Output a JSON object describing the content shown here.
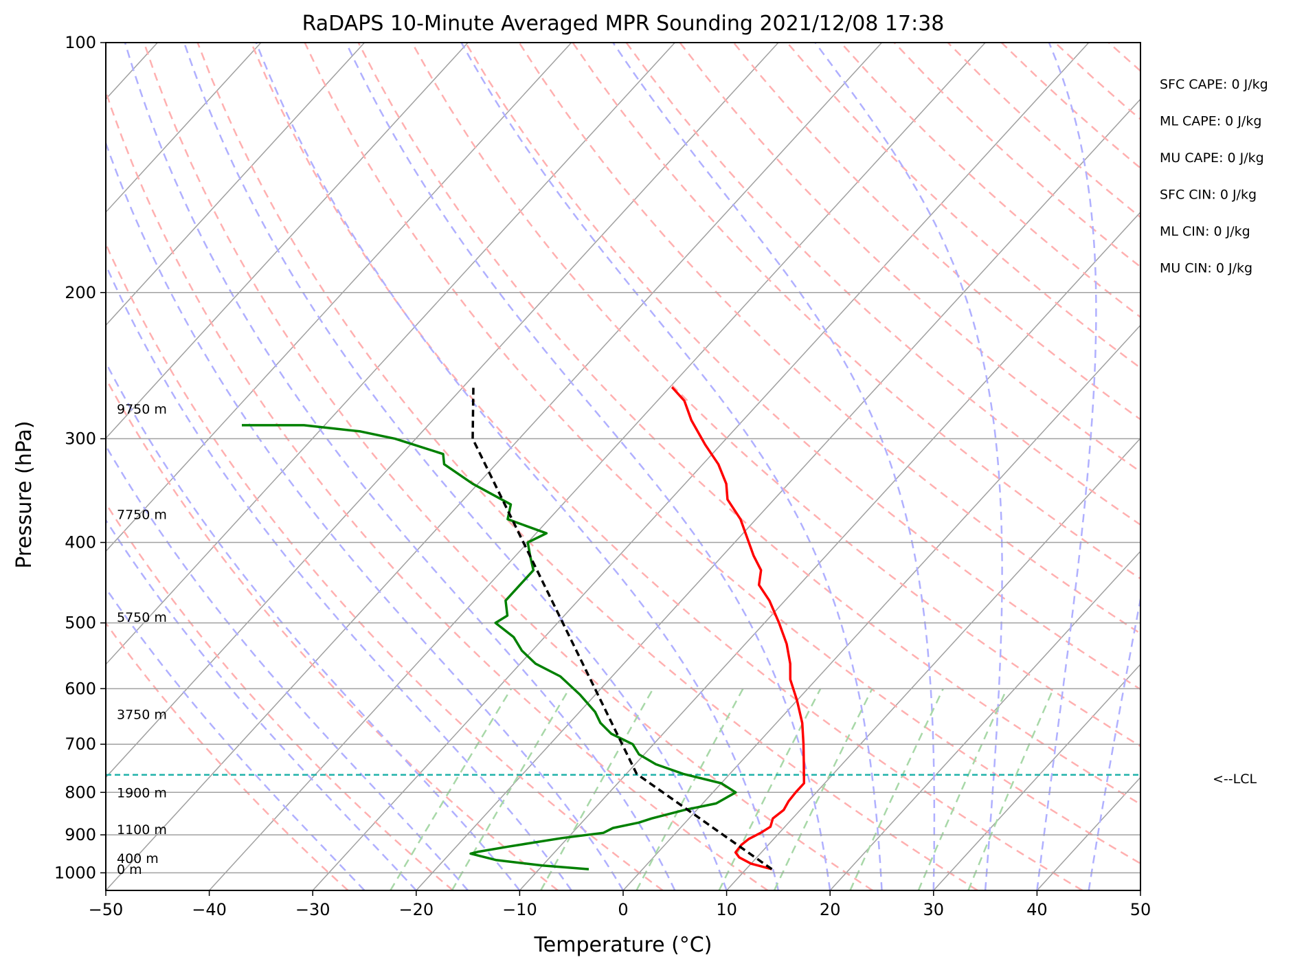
{
  "chart_data": {
    "type": "line",
    "title": "RaDAPS 10-Minute Averaged MPR Sounding 2021/12/08 17:38",
    "xlabel": "Temperature (°C)",
    "ylabel": "Pressure (hPa)",
    "xlim": [
      -50,
      50
    ],
    "ylim": [
      1050,
      100
    ],
    "y_scale": "log",
    "skew": "skew-T",
    "x_ticks": [
      "−50",
      "−40",
      "−30",
      "−20",
      "−10",
      "0",
      "10",
      "20",
      "30",
      "40",
      "50"
    ],
    "y_ticks": [
      "100",
      "200",
      "300",
      "400",
      "500",
      "600",
      "700",
      "800",
      "900",
      "1000"
    ],
    "grid": true,
    "series": [
      {
        "kind": "temperature",
        "color": "#ff0000",
        "points": [
          {
            "p": 990,
            "t": 12.5
          },
          {
            "p": 975,
            "t": 10.0
          },
          {
            "p": 958,
            "t": 8.3
          },
          {
            "p": 945,
            "t": 7.5
          },
          {
            "p": 925,
            "t": 7.4
          },
          {
            "p": 910,
            "t": 7.6
          },
          {
            "p": 895,
            "t": 8.2
          },
          {
            "p": 880,
            "t": 8.6
          },
          {
            "p": 860,
            "t": 8.1
          },
          {
            "p": 840,
            "t": 8.4
          },
          {
            "p": 820,
            "t": 8.1
          },
          {
            "p": 800,
            "t": 8.0
          },
          {
            "p": 780,
            "t": 8.0
          },
          {
            "p": 740,
            "t": 6.3
          },
          {
            "p": 700,
            "t": 4.5
          },
          {
            "p": 660,
            "t": 2.5
          },
          {
            "p": 620,
            "t": 0.0
          },
          {
            "p": 585,
            "t": -2.5
          },
          {
            "p": 560,
            "t": -3.9
          },
          {
            "p": 530,
            "t": -6.0
          },
          {
            "p": 500,
            "t": -8.6
          },
          {
            "p": 470,
            "t": -11.5
          },
          {
            "p": 450,
            "t": -13.9
          },
          {
            "p": 432,
            "t": -15.0
          },
          {
            "p": 415,
            "t": -17.0
          },
          {
            "p": 375,
            "t": -21.5
          },
          {
            "p": 355,
            "t": -24.5
          },
          {
            "p": 340,
            "t": -26.0
          },
          {
            "p": 322,
            "t": -28.5
          },
          {
            "p": 305,
            "t": -31.5
          },
          {
            "p": 285,
            "t": -35.0
          },
          {
            "p": 270,
            "t": -37.4
          },
          {
            "p": 260,
            "t": -39.8
          }
        ]
      },
      {
        "kind": "dewpoint",
        "color": "#008000",
        "points": [
          {
            "p": 990,
            "t": -5.2
          },
          {
            "p": 980,
            "t": -10.0
          },
          {
            "p": 965,
            "t": -15.0
          },
          {
            "p": 948,
            "t": -18.0
          },
          {
            "p": 943,
            "t": -17.4
          },
          {
            "p": 930,
            "t": -15.0
          },
          {
            "p": 908,
            "t": -10.5
          },
          {
            "p": 895,
            "t": -7.0
          },
          {
            "p": 883,
            "t": -6.5
          },
          {
            "p": 870,
            "t": -4.5
          },
          {
            "p": 860,
            "t": -3.6
          },
          {
            "p": 840,
            "t": -1.2
          },
          {
            "p": 825,
            "t": 1.3
          },
          {
            "p": 800,
            "t": 2.2
          },
          {
            "p": 780,
            "t": 0.0
          },
          {
            "p": 760,
            "t": -4.5
          },
          {
            "p": 740,
            "t": -8.0
          },
          {
            "p": 720,
            "t": -10.5
          },
          {
            "p": 700,
            "t": -12.0
          },
          {
            "p": 680,
            "t": -15.0
          },
          {
            "p": 660,
            "t": -17.0
          },
          {
            "p": 640,
            "t": -18.5
          },
          {
            "p": 610,
            "t": -21.5
          },
          {
            "p": 580,
            "t": -25.0
          },
          {
            "p": 560,
            "t": -28.5
          },
          {
            "p": 540,
            "t": -31.0
          },
          {
            "p": 520,
            "t": -33.0
          },
          {
            "p": 500,
            "t": -36.0
          },
          {
            "p": 490,
            "t": -35.5
          },
          {
            "p": 470,
            "t": -37.0
          },
          {
            "p": 450,
            "t": -37.0
          },
          {
            "p": 432,
            "t": -37.0
          },
          {
            "p": 415,
            "t": -38.6
          },
          {
            "p": 400,
            "t": -40.0
          },
          {
            "p": 390,
            "t": -39.0
          },
          {
            "p": 375,
            "t": -44.0
          },
          {
            "p": 360,
            "t": -45.0
          },
          {
            "p": 340,
            "t": -50.5
          },
          {
            "p": 322,
            "t": -55.0
          },
          {
            "p": 313,
            "t": -56.0
          },
          {
            "p": 300,
            "t": -62.0
          },
          {
            "p": 294,
            "t": -66.0
          },
          {
            "p": 289,
            "t": -72.0
          },
          {
            "p": 289,
            "t": -78.0
          }
        ]
      },
      {
        "kind": "parcel",
        "color": "#000000",
        "points": [
          {
            "p": 990,
            "t": 12.5
          },
          {
            "p": 760,
            "t": -9.0
          },
          {
            "p": 300,
            "t": -54.5
          },
          {
            "p": 260,
            "t": -59.0
          }
        ]
      }
    ],
    "lcl": {
      "label": "<--LCL",
      "pressure": 762,
      "color": "#20b2aa"
    },
    "height_labels": [
      {
        "p": 990,
        "text": "0 m"
      },
      {
        "p": 960,
        "text": "400 m"
      },
      {
        "p": 886,
        "text": "1100 m"
      },
      {
        "p": 800,
        "text": "1900 m"
      },
      {
        "p": 644,
        "text": "3750 m"
      },
      {
        "p": 492,
        "text": "5750 m"
      },
      {
        "p": 370,
        "text": "7750 m"
      },
      {
        "p": 276,
        "text": "9750 m"
      }
    ],
    "indices": [
      "SFC CAPE: 0 J/kg",
      "ML CAPE: 0 J/kg",
      "MU CAPE: 0 J/kg",
      "SFC CIN: 0 J/kg",
      "ML CIN: 0 J/kg",
      "MU CIN: 0 J/kg"
    ],
    "background_lines": {
      "isotherms_color": "#a0a0a0",
      "dry_adiabats_color": "#ffb0b0",
      "moist_adiabats_color": "#b0b0ff",
      "mixing_ratio_color": "#a8d8a8"
    }
  }
}
